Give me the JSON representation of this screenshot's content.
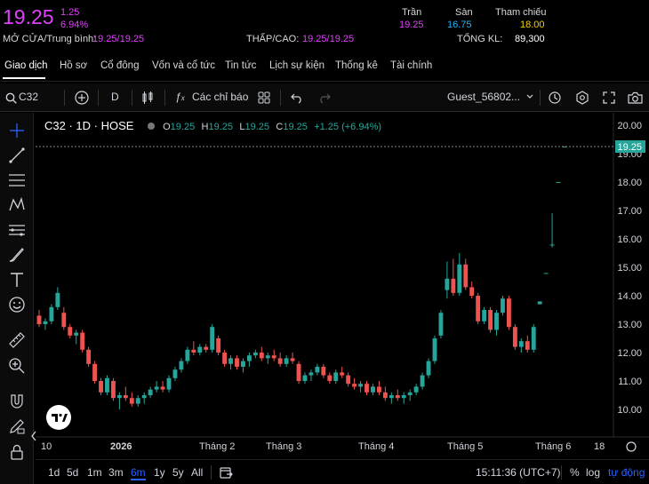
{
  "quote": {
    "price": "19.25",
    "change": "1.25",
    "change_pct": "6.94%",
    "open_avg_label": "MỞ CỬA/Trung bình:",
    "open_avg_value": "19.25/19.25",
    "low_high_label": "THẤP/CAO:",
    "low_high_value": "19.25/19.25",
    "ceiling_label": "Trần",
    "ceiling_value": "19.25",
    "floor_label": "Sàn",
    "floor_value": "16.75",
    "ref_label": "Tham chiếu",
    "ref_value": "18.00",
    "volume_label": "TỔNG KL:",
    "volume_value": "89,300",
    "colors": {
      "ceiling": "#e040fb",
      "floor": "#18b5ff",
      "reference": "#f5d000"
    }
  },
  "tabs": [
    {
      "label": "Giao dịch",
      "active": true
    },
    {
      "label": "Hồ sơ"
    },
    {
      "label": "Cổ đông"
    },
    {
      "label": "Vốn và cổ tức"
    },
    {
      "label": "Tin tức"
    },
    {
      "label": "Lịch sự kiện"
    },
    {
      "label": "Thống kê"
    },
    {
      "label": "Tài chính"
    }
  ],
  "toolbar": {
    "symbol": "C32",
    "interval": "D",
    "indicators_label": "Các chỉ báo",
    "user": "Guest_56802...",
    "icons": [
      "search-icon",
      "add-symbol-icon",
      "candles-icon",
      "indicators-icon",
      "templates-icon",
      "undo-icon",
      "redo-icon",
      "alert-icon",
      "settings-icon",
      "fullscreen-icon",
      "snapshot-icon"
    ]
  },
  "legend": {
    "title": "C32 · 1D · HOSE",
    "o_label": "O",
    "o": "19.25",
    "h_label": "H",
    "h": "19.25",
    "l_label": "L",
    "l": "19.25",
    "c_label": "C",
    "c": "19.25",
    "chg": "+1.25 (+6.94%)"
  },
  "left_tools": [
    "crosshair-icon",
    "trendline-icon",
    "fib-icon",
    "pattern-icon",
    "projection-icon",
    "brush-icon",
    "text-icon",
    "emoji-icon",
    "ruler-icon",
    "zoom-in-icon",
    "magnet-icon",
    "lock-draw-icon",
    "lock-icon"
  ],
  "bottom": {
    "ranges": [
      "1d",
      "5d",
      "1m",
      "3m",
      "6m",
      "1y",
      "5y",
      "All"
    ],
    "active_range": "6m",
    "time": "15:11:36 (UTC+7)",
    "pct": "%",
    "log": "log",
    "auto": "tự động"
  },
  "chart_data": {
    "type": "candlestick",
    "y_ticks": [
      "20.00",
      "19.00",
      "18.00",
      "17.00",
      "16.00",
      "15.00",
      "14.00",
      "13.00",
      "12.00",
      "11.00",
      "10.00"
    ],
    "ylim": [
      9.6,
      20.3
    ],
    "x_ticks": [
      "10",
      "2026",
      "Tháng 2",
      "Tháng 3",
      "Tháng 4",
      "Tháng 5",
      "Tháng 6",
      "18"
    ],
    "last_price_label": "19.25",
    "colors": {
      "up": "#26a69a",
      "down": "#ef5350",
      "last": "#26a69a"
    },
    "candles": [
      [
        13.3,
        13.5,
        12.9,
        13.0
      ],
      [
        13.0,
        13.2,
        12.8,
        13.1
      ],
      [
        13.1,
        13.7,
        13.0,
        13.6
      ],
      [
        13.6,
        14.3,
        13.5,
        14.1
      ],
      [
        13.4,
        13.6,
        12.8,
        12.9
      ],
      [
        12.9,
        13.0,
        12.5,
        12.6
      ],
      [
        12.6,
        12.8,
        12.3,
        12.7
      ],
      [
        12.7,
        12.8,
        12.0,
        12.1
      ],
      [
        12.1,
        12.2,
        11.5,
        11.6
      ],
      [
        11.6,
        11.7,
        10.9,
        11.0
      ],
      [
        11.0,
        11.1,
        10.5,
        10.6
      ],
      [
        10.6,
        11.2,
        10.5,
        11.1
      ],
      [
        11.0,
        11.1,
        10.3,
        10.4
      ],
      [
        10.4,
        10.6,
        10.0,
        10.5
      ],
      [
        10.5,
        10.8,
        10.3,
        10.4
      ],
      [
        10.4,
        10.6,
        10.1,
        10.2
      ],
      [
        10.2,
        10.5,
        10.1,
        10.4
      ],
      [
        10.4,
        10.6,
        10.2,
        10.5
      ],
      [
        10.5,
        10.8,
        10.4,
        10.7
      ],
      [
        10.7,
        11.0,
        10.6,
        10.8
      ],
      [
        10.8,
        11.0,
        10.6,
        10.7
      ],
      [
        10.7,
        11.2,
        10.6,
        11.1
      ],
      [
        11.1,
        11.5,
        11.0,
        11.4
      ],
      [
        11.4,
        11.8,
        11.3,
        11.7
      ],
      [
        11.7,
        12.2,
        11.6,
        12.1
      ],
      [
        12.1,
        12.4,
        11.9,
        12.0
      ],
      [
        12.0,
        12.3,
        11.9,
        12.2
      ],
      [
        12.2,
        12.3,
        12.0,
        12.1
      ],
      [
        12.1,
        13.0,
        12.0,
        12.9
      ],
      [
        12.5,
        12.6,
        11.9,
        12.0
      ],
      [
        12.0,
        12.1,
        11.5,
        11.6
      ],
      [
        11.6,
        11.9,
        11.4,
        11.8
      ],
      [
        11.8,
        11.9,
        11.4,
        11.5
      ],
      [
        11.5,
        11.8,
        11.3,
        11.7
      ],
      [
        11.7,
        12.0,
        11.5,
        11.9
      ],
      [
        11.9,
        12.1,
        11.8,
        12.0
      ],
      [
        12.0,
        12.2,
        11.7,
        11.8
      ],
      [
        11.8,
        12.0,
        11.6,
        11.9
      ],
      [
        11.9,
        12.1,
        11.7,
        11.8
      ],
      [
        11.8,
        12.0,
        11.5,
        11.6
      ],
      [
        11.6,
        11.9,
        11.5,
        11.8
      ],
      [
        11.8,
        12.0,
        11.6,
        11.7
      ],
      [
        11.6,
        11.7,
        10.9,
        11.0
      ],
      [
        11.0,
        11.3,
        10.9,
        11.2
      ],
      [
        11.2,
        11.4,
        11.0,
        11.3
      ],
      [
        11.3,
        11.6,
        11.2,
        11.5
      ],
      [
        11.5,
        11.6,
        11.1,
        11.2
      ],
      [
        11.2,
        11.3,
        10.9,
        11.0
      ],
      [
        11.0,
        11.4,
        10.9,
        11.3
      ],
      [
        11.3,
        11.5,
        11.1,
        11.2
      ],
      [
        11.2,
        11.3,
        10.8,
        10.9
      ],
      [
        10.9,
        11.1,
        10.7,
        10.8
      ],
      [
        10.8,
        11.0,
        10.6,
        10.9
      ],
      [
        10.9,
        11.0,
        10.5,
        10.6
      ],
      [
        10.6,
        10.9,
        10.5,
        10.8
      ],
      [
        10.8,
        11.0,
        10.5,
        10.6
      ],
      [
        10.6,
        10.8,
        10.3,
        10.4
      ],
      [
        10.4,
        10.6,
        10.2,
        10.5
      ],
      [
        10.5,
        10.7,
        10.3,
        10.4
      ],
      [
        10.4,
        10.6,
        10.2,
        10.5
      ],
      [
        10.5,
        10.7,
        10.3,
        10.6
      ],
      [
        10.6,
        10.9,
        10.5,
        10.8
      ],
      [
        10.8,
        11.3,
        10.7,
        11.2
      ],
      [
        11.2,
        11.8,
        11.1,
        11.7
      ],
      [
        11.7,
        12.6,
        11.6,
        12.5
      ],
      [
        12.6,
        13.5,
        12.5,
        13.4
      ],
      [
        14.2,
        15.2,
        13.9,
        14.6
      ],
      [
        14.6,
        15.3,
        14.0,
        14.1
      ],
      [
        14.1,
        15.5,
        14.0,
        15.1
      ],
      [
        15.1,
        15.3,
        14.2,
        14.3
      ],
      [
        14.3,
        14.5,
        13.9,
        14.0
      ],
      [
        14.0,
        14.1,
        13.0,
        13.1
      ],
      [
        13.1,
        13.6,
        13.0,
        13.5
      ],
      [
        13.5,
        13.6,
        12.7,
        12.8
      ],
      [
        12.8,
        13.5,
        12.6,
        13.4
      ],
      [
        13.4,
        14.0,
        13.3,
        13.9
      ],
      [
        13.9,
        14.0,
        12.8,
        12.9
      ],
      [
        12.9,
        13.0,
        12.1,
        12.2
      ],
      [
        12.2,
        12.5,
        12.0,
        12.4
      ],
      [
        12.4,
        12.6,
        12.0,
        12.1
      ],
      [
        12.1,
        13.0,
        12.0,
        12.9
      ],
      [
        13.7,
        13.8,
        13.7,
        13.8
      ],
      [
        14.8,
        14.8,
        14.8,
        14.8
      ],
      [
        15.8,
        16.9,
        15.7,
        15.8
      ],
      [
        18.0,
        18.0,
        18.0,
        18.0
      ],
      [
        19.25,
        19.25,
        19.25,
        19.25
      ]
    ]
  }
}
